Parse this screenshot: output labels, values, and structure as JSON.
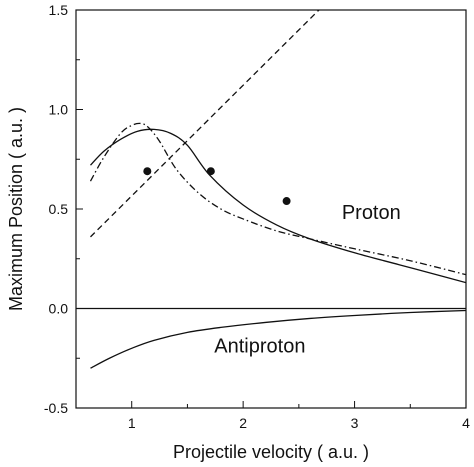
{
  "chart_data": {
    "type": "line",
    "title": "",
    "xlabel": "Projectile velocity ( a.u. )",
    "ylabel": "Maximum Position ( a.u. )",
    "xlim": [
      0.5,
      4
    ],
    "ylim": [
      -0.5,
      1.5
    ],
    "x_ticks": [
      1,
      2,
      3,
      4
    ],
    "x_tick_labels": [
      "1",
      "2",
      "3",
      "4"
    ],
    "y_ticks": [
      -0.5,
      0.0,
      0.5,
      1.0,
      1.5
    ],
    "y_tick_labels": [
      "-0.5",
      "0.0",
      "0.5",
      "1.0",
      "1.5"
    ],
    "grid": false,
    "legend": "none",
    "series": [
      {
        "style": "solid",
        "x": [
          0.63,
          0.75,
          0.9,
          1.05,
          1.2,
          1.35,
          1.5,
          1.7,
          2.0,
          2.3,
          2.6,
          3.0,
          3.4,
          3.8,
          4.0
        ],
        "y": [
          0.72,
          0.79,
          0.85,
          0.89,
          0.9,
          0.88,
          0.82,
          0.67,
          0.52,
          0.42,
          0.35,
          0.28,
          0.22,
          0.16,
          0.13
        ]
      },
      {
        "style": "dash-dot",
        "x": [
          0.63,
          0.75,
          0.9,
          1.0,
          1.08,
          1.15,
          1.25,
          1.4,
          1.6,
          1.8,
          2.0,
          2.3,
          2.6,
          3.0,
          3.5,
          4.0
        ],
        "y": [
          0.64,
          0.76,
          0.88,
          0.92,
          0.93,
          0.91,
          0.84,
          0.7,
          0.58,
          0.5,
          0.45,
          0.39,
          0.35,
          0.3,
          0.24,
          0.17
        ]
      },
      {
        "style": "dashed",
        "x": [
          0.63,
          2.68
        ],
        "y": [
          0.36,
          1.5
        ]
      },
      {
        "style": "solid",
        "x": [
          0.63,
          0.8,
          1.0,
          1.2,
          1.5,
          1.8,
          2.2,
          2.6,
          3.0,
          3.5,
          4.0
        ],
        "y": [
          -0.3,
          -0.25,
          -0.2,
          -0.16,
          -0.12,
          -0.095,
          -0.07,
          -0.05,
          -0.035,
          -0.02,
          -0.01
        ]
      },
      {
        "style": "markers",
        "x": [
          1.14,
          1.71,
          2.39
        ],
        "y": [
          0.69,
          0.69,
          0.54
        ]
      }
    ],
    "reference_line": {
      "y": 0.0
    },
    "annotations": [
      {
        "text": "Proton",
        "x": 3.15,
        "y": 0.45
      },
      {
        "text": "Antiproton",
        "x": 2.15,
        "y": -0.22
      }
    ]
  }
}
